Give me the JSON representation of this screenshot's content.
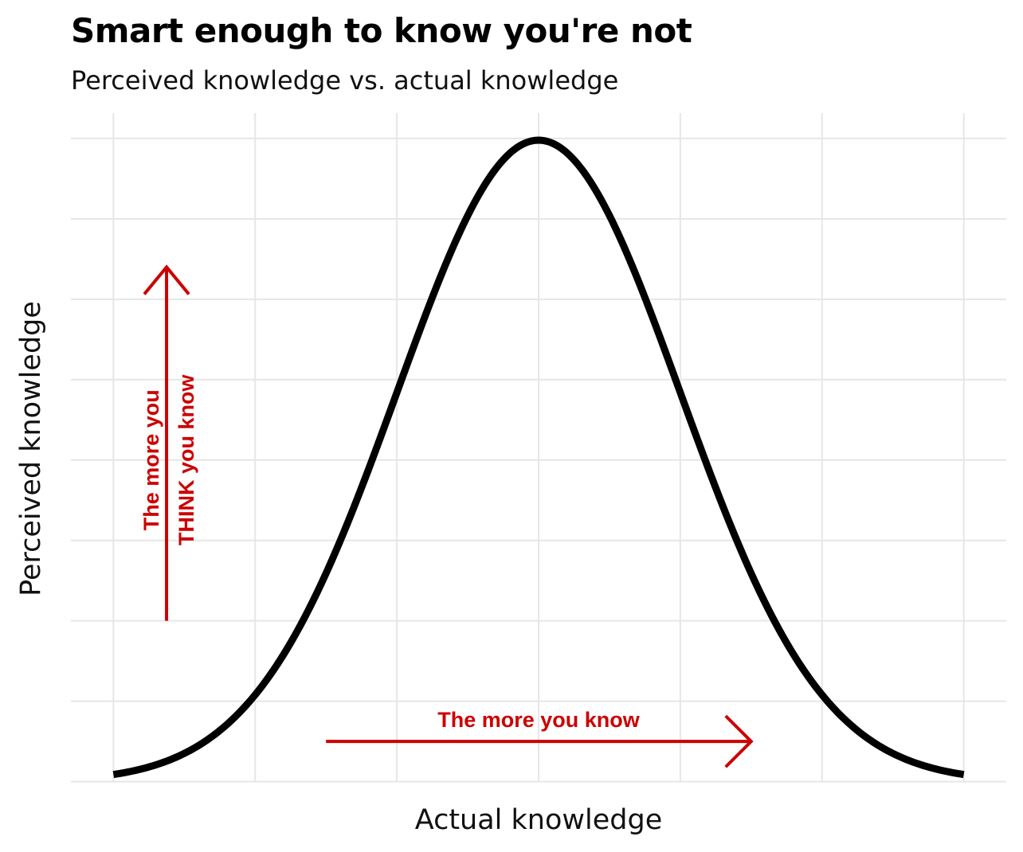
{
  "chart_data": {
    "type": "line",
    "title": "Smart enough to know you're not",
    "subtitle": "Perceived knowledge vs. actual knowledge",
    "xlabel": "Actual knowledge",
    "ylabel": "Perceived knowledge",
    "series": [
      {
        "curve": "normal-density",
        "mean": 0,
        "sd": 1,
        "x": [
          -3,
          -2.75,
          -2.5,
          -2.25,
          -2,
          -1.75,
          -1.5,
          -1.25,
          -1,
          -0.75,
          -0.5,
          -0.25,
          0,
          0.25,
          0.5,
          0.75,
          1,
          1.25,
          1.5,
          1.75,
          2,
          2.25,
          2.5,
          2.75,
          3
        ],
        "y": [
          0.0044,
          0.0091,
          0.0175,
          0.0317,
          0.054,
          0.0863,
          0.1295,
          0.1826,
          0.242,
          0.3011,
          0.3521,
          0.3867,
          0.3989,
          0.3867,
          0.3521,
          0.3011,
          0.242,
          0.1826,
          0.1295,
          0.0863,
          0.054,
          0.0317,
          0.0175,
          0.0091,
          0.0044
        ]
      }
    ],
    "xlim": [
      -3.3,
      3.3
    ],
    "ylim": [
      0.0003,
      0.4158
    ],
    "x_gridlines": [
      -3,
      -2,
      -1,
      0,
      1,
      2,
      3
    ],
    "y_gridlines": [
      0.0,
      0.05,
      0.1,
      0.15,
      0.2,
      0.25,
      0.3,
      0.35,
      0.4
    ],
    "grid": true,
    "tick_labels_shown": false,
    "annotations": [
      {
        "id": "horizontal",
        "text": "The more you know",
        "arrow_from": {
          "x": -1.5,
          "y": 0.025
        },
        "arrow_to": {
          "x": 1.5,
          "y": 0.025
        },
        "text_at": {
          "x": 0,
          "y": 0.039
        },
        "color": "#cc0000"
      },
      {
        "id": "vertical",
        "text_lines": [
          "The more you",
          "THINK you know"
        ],
        "arrow_from": {
          "x": -2.625,
          "y": 0.1
        },
        "arrow_to": {
          "x": -2.625,
          "y": 0.32
        },
        "text_at": {
          "x": -2.625,
          "y": 0.2
        },
        "color": "#cc0000"
      }
    ]
  },
  "colors": {
    "curve": "#000000",
    "grid": "#e6e6e6",
    "annotation": "#cc0000",
    "background": "#ffffff"
  }
}
